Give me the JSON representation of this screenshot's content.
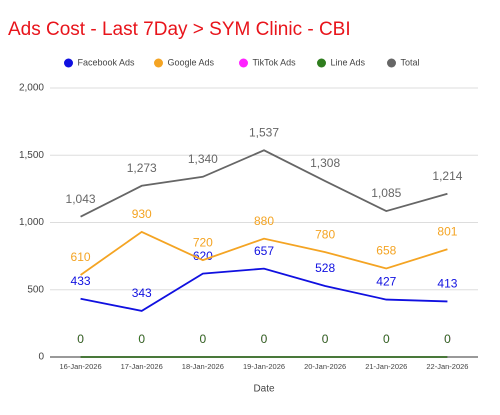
{
  "chart_data": {
    "type": "line",
    "title": "Ads Cost - Last 7Day > SYM Clinic - CBI",
    "x_label": "Date",
    "categories": [
      "16-Jan-2026",
      "17-Jan-2026",
      "18-Jan-2026",
      "19-Jan-2026",
      "20-Jan-2026",
      "21-Jan-2026",
      "22-Jan-2026"
    ],
    "series": [
      {
        "name": "Facebook Ads",
        "color": "#1010e0",
        "values": [
          433,
          343,
          620,
          657,
          528,
          427,
          413
        ]
      },
      {
        "name": "Google Ads",
        "color": "#f4a423",
        "values": [
          610,
          930,
          720,
          880,
          780,
          658,
          801
        ]
      },
      {
        "name": "TikTok Ads",
        "color": "#ff22ff",
        "values": [
          0,
          0,
          0,
          0,
          0,
          0,
          0
        ]
      },
      {
        "name": "Line Ads",
        "color": "#2f7d1e",
        "values": [
          0,
          0,
          0,
          0,
          0,
          0,
          0
        ]
      },
      {
        "name": "Total",
        "color": "#666666",
        "values": [
          1043,
          1273,
          1340,
          1537,
          1308,
          1085,
          1214
        ],
        "value_labels": [
          "1,043",
          "1,273",
          "1,340",
          "1,537",
          "1,308",
          "1,085",
          "1,214"
        ]
      }
    ],
    "ylim": [
      0,
      2000
    ],
    "yticks": [
      0,
      500,
      {
        "value": 1000,
        "label": "1,000"
      },
      {
        "value": 1500,
        "label": "1,500"
      },
      {
        "value": 2000,
        "label": "2,000"
      }
    ],
    "grid": true,
    "legend": "top"
  }
}
